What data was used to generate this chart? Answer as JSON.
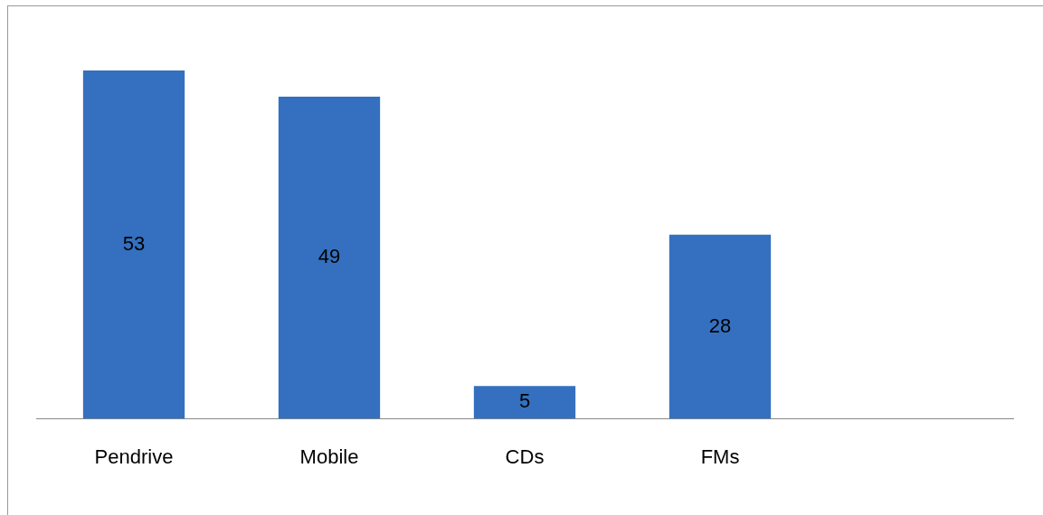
{
  "chart_data": {
    "type": "bar",
    "categories": [
      "Pendrive",
      "Mobile",
      "CDs",
      "FMs",
      null
    ],
    "values": [
      53,
      49,
      5,
      28,
      null
    ],
    "color": "#3470bf",
    "data_labels": true,
    "tick_labels": "x",
    "grid": false,
    "legend": false
  }
}
